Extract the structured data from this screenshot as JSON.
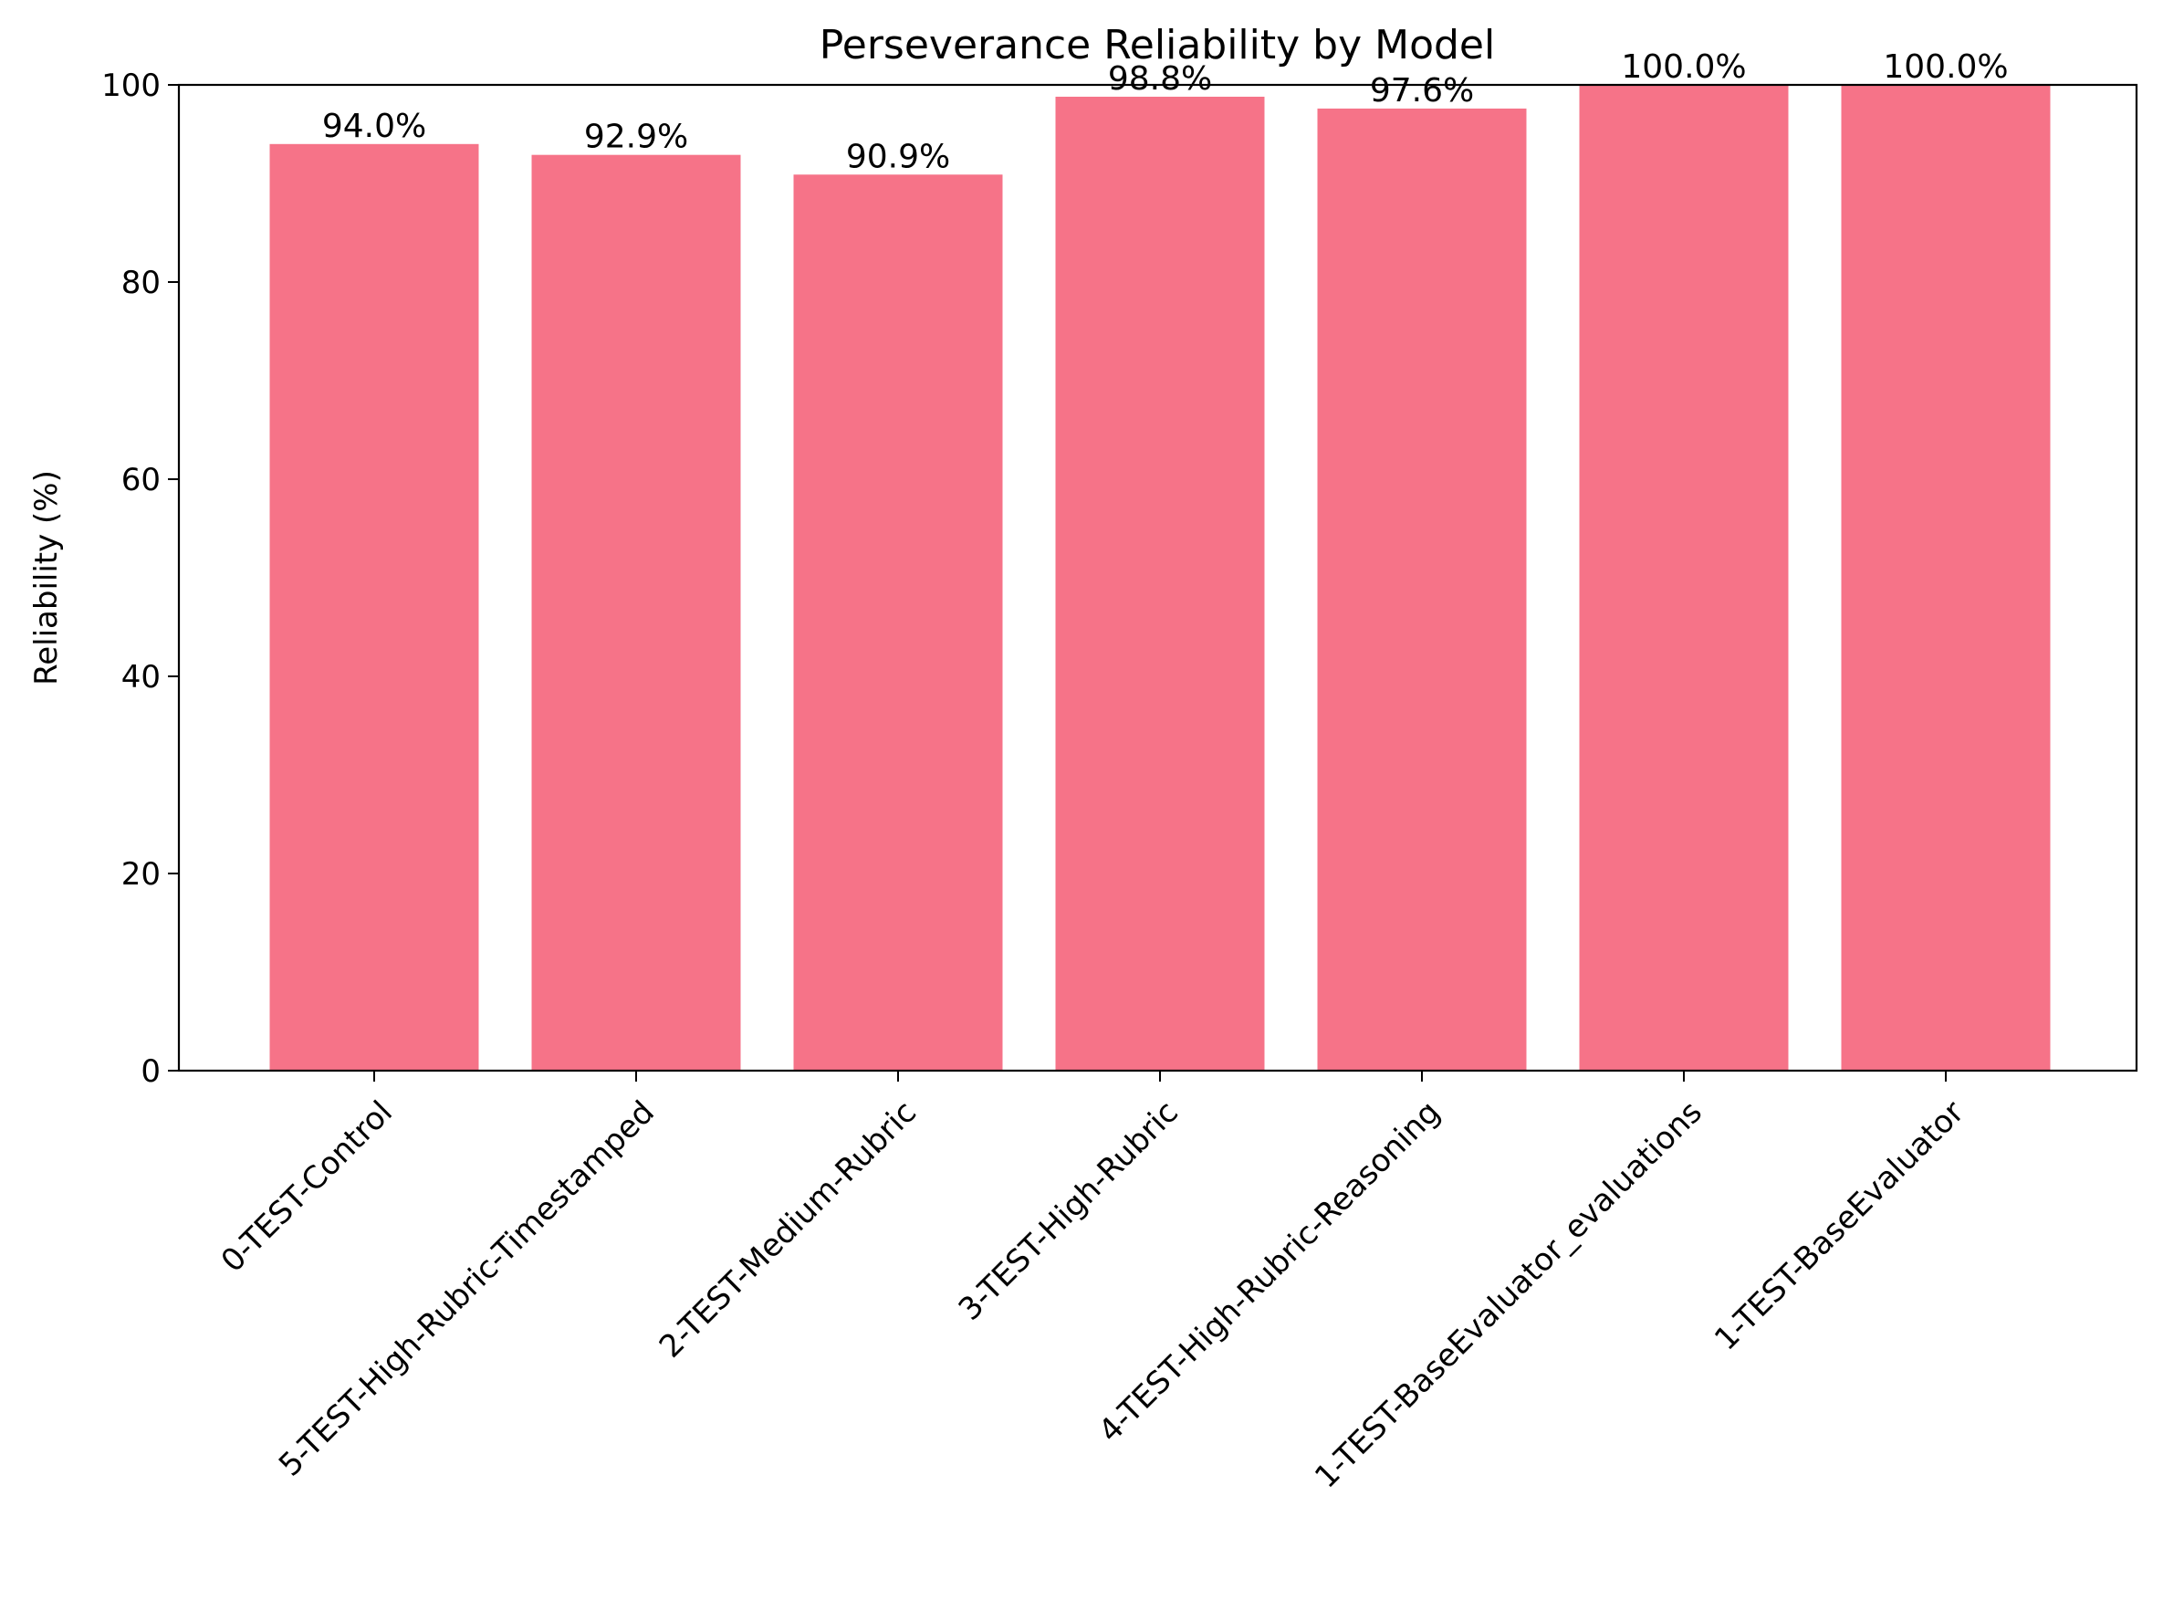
{
  "chart_data": {
    "type": "bar",
    "title": "Perseverance Reliability by Model",
    "xlabel": "",
    "ylabel": "Reliability (%)",
    "ylim": [
      0,
      100
    ],
    "yticks": [
      0,
      20,
      40,
      60,
      80,
      100
    ],
    "grid": false,
    "bar_color": "#f67388",
    "categories": [
      "0-TEST-Control",
      "5-TEST-High-Rubric-Timestamped",
      "2-TEST-Medium-Rubric",
      "3-TEST-High-Rubric",
      "4-TEST-High-Rubric-Reasoning",
      "1-TEST-BaseEvaluator_evaluations",
      "1-TEST-BaseEvaluator"
    ],
    "values": [
      94.0,
      92.9,
      90.9,
      98.8,
      97.6,
      100.0,
      100.0
    ],
    "data_labels": [
      "94.0%",
      "92.9%",
      "90.9%",
      "98.8%",
      "97.6%",
      "100.0%",
      "100.0%"
    ]
  }
}
